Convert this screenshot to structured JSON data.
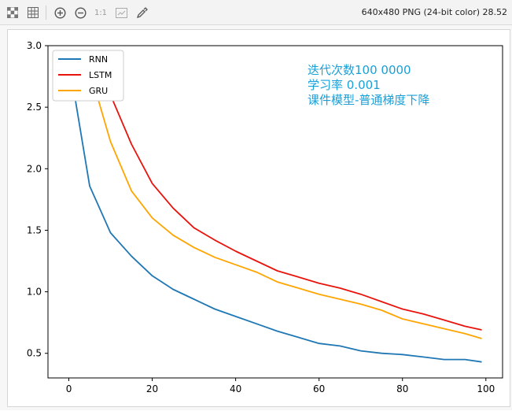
{
  "toolbar": {
    "icons": [
      "checkerboard-icon",
      "grid-icon",
      "zoom-in-icon",
      "zoom-out-icon",
      "actual-size-icon",
      "fit-window-icon",
      "color-picker-icon"
    ],
    "actual_size_label": "1:1",
    "image_info": "640x480 PNG (24-bit color) 28.52"
  },
  "chart_data": {
    "type": "line",
    "title": "",
    "xlabel": "",
    "ylabel": "",
    "xlim": [
      -5,
      104
    ],
    "ylim": [
      0.3,
      3.0
    ],
    "x_ticks": [
      "0",
      "20",
      "40",
      "60",
      "80",
      "100"
    ],
    "y_ticks": [
      "0.5",
      "1.0",
      "1.5",
      "2.0",
      "2.5",
      "3.0"
    ],
    "legend_position": "top-left",
    "grid": false,
    "annotation_lines": [
      "迭代次数100 0000",
      "学习率 0.001",
      "课件模型-普通梯度下降"
    ],
    "annotation_color": "#1aa0d8",
    "x": [
      0,
      5,
      10,
      15,
      20,
      25,
      30,
      35,
      40,
      45,
      50,
      55,
      60,
      65,
      70,
      75,
      80,
      85,
      90,
      95,
      99
    ],
    "series": [
      {
        "name": "RNN",
        "color": "#1f77b4",
        "values": [
          2.88,
          1.86,
          1.48,
          1.29,
          1.13,
          1.02,
          0.94,
          0.86,
          0.8,
          0.74,
          0.68,
          0.63,
          0.58,
          0.56,
          0.52,
          0.5,
          0.49,
          0.47,
          0.45,
          0.45,
          0.43
        ]
      },
      {
        "name": "LSTM",
        "color": "#e8140c",
        "values": [
          2.88,
          2.86,
          2.6,
          2.2,
          1.88,
          1.68,
          1.52,
          1.42,
          1.33,
          1.25,
          1.17,
          1.12,
          1.07,
          1.03,
          0.98,
          0.92,
          0.86,
          0.82,
          0.77,
          0.72,
          0.69
        ]
      },
      {
        "name": "GRU",
        "color": "#ffa500",
        "values": [
          2.88,
          2.8,
          2.22,
          1.82,
          1.6,
          1.46,
          1.36,
          1.28,
          1.22,
          1.16,
          1.08,
          1.03,
          0.98,
          0.94,
          0.9,
          0.85,
          0.78,
          0.74,
          0.7,
          0.66,
          0.62
        ]
      }
    ]
  }
}
